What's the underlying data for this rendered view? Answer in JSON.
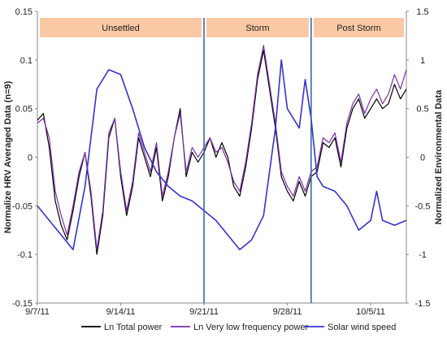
{
  "chart_data": {
    "type": "line",
    "ylabel_left": "Normalize HRV Averaged Data (n=9)",
    "ylabel_right": "Normalized Environmental Data",
    "ylim_left": [
      -0.15,
      0.15
    ],
    "ylim_right": [
      -1.5,
      1.5
    ],
    "yticks_left": [
      "0.15",
      "0.1",
      "0.05",
      "0",
      "-0.05",
      "-0.1",
      "-0.15"
    ],
    "yticks_right": [
      "1.5",
      "1",
      "0.5",
      "0",
      "-0.5",
      "-1",
      "-1.5"
    ],
    "xlim": [
      "2011-09-07",
      "2011-10-08"
    ],
    "xticks": [
      {
        "date": "2011-09-07",
        "label": "9/7/11"
      },
      {
        "date": "2011-09-14",
        "label": "9/14/11"
      },
      {
        "date": "2011-09-21",
        "label": "9/21/11"
      },
      {
        "date": "2011-09-28",
        "label": "9/28/11"
      },
      {
        "date": "2011-10-05",
        "label": "10/5/11"
      }
    ],
    "period_dividers": [
      "2011-09-21",
      "2011-09-30"
    ],
    "periods": [
      {
        "label": "Unsettled",
        "start": "2011-09-07",
        "end": "2011-09-21"
      },
      {
        "label": "Storm",
        "start": "2011-09-21",
        "end": "2011-09-30"
      },
      {
        "label": "Post Storm",
        "start": "2011-09-30",
        "end": "2011-10-08"
      }
    ],
    "series": [
      {
        "name": "Ln Total power",
        "axis": "left",
        "color": "#000000",
        "points": [
          [
            "2011-09-07",
            0.038
          ],
          [
            "2011-09-07",
            0.045
          ],
          [
            "2011-09-08",
            0.01
          ],
          [
            "2011-09-08",
            -0.045
          ],
          [
            "2011-09-09",
            -0.07
          ],
          [
            "2011-09-09",
            -0.085
          ],
          [
            "2011-09-10",
            -0.055
          ],
          [
            "2011-09-10",
            -0.02
          ],
          [
            "2011-09-11",
            0.005
          ],
          [
            "2011-09-11",
            -0.04
          ],
          [
            "2011-09-12",
            -0.1
          ],
          [
            "2011-09-12",
            -0.06
          ],
          [
            "2011-09-13",
            0.02
          ],
          [
            "2011-09-13",
            0.04
          ],
          [
            "2011-09-14",
            -0.02
          ],
          [
            "2011-09-14",
            -0.06
          ],
          [
            "2011-09-15",
            -0.03
          ],
          [
            "2011-09-15",
            0.02
          ],
          [
            "2011-09-16",
            0.0
          ],
          [
            "2011-09-16",
            -0.02
          ],
          [
            "2011-09-17",
            0.01
          ],
          [
            "2011-09-17",
            -0.045
          ],
          [
            "2011-09-18",
            -0.02
          ],
          [
            "2011-09-18",
            0.02
          ],
          [
            "2011-09-19",
            0.05
          ],
          [
            "2011-09-19",
            -0.02
          ],
          [
            "2011-09-20",
            0.005
          ],
          [
            "2011-09-20",
            -0.005
          ],
          [
            "2011-09-21",
            0.005
          ],
          [
            "2011-09-21",
            0.02
          ],
          [
            "2011-09-22",
            0.0
          ],
          [
            "2011-09-22",
            0.015
          ],
          [
            "2011-09-23",
            0.0
          ],
          [
            "2011-09-23",
            -0.03
          ],
          [
            "2011-09-24",
            -0.04
          ],
          [
            "2011-09-24",
            -0.01
          ],
          [
            "2011-09-25",
            0.03
          ],
          [
            "2011-09-25",
            0.08
          ],
          [
            "2011-09-26",
            0.11
          ],
          [
            "2011-09-26",
            0.07
          ],
          [
            "2011-09-27",
            0.03
          ],
          [
            "2011-09-27",
            -0.02
          ],
          [
            "2011-09-28",
            -0.035
          ],
          [
            "2011-09-28",
            -0.045
          ],
          [
            "2011-09-29",
            -0.025
          ],
          [
            "2011-09-29",
            -0.04
          ],
          [
            "2011-09-30",
            -0.02
          ],
          [
            "2011-09-30",
            -0.015
          ],
          [
            "2011-10-01",
            0.015
          ],
          [
            "2011-10-01",
            0.01
          ],
          [
            "2011-10-02",
            0.02
          ],
          [
            "2011-10-02",
            -0.01
          ],
          [
            "2011-10-03",
            0.03
          ],
          [
            "2011-10-03",
            0.05
          ],
          [
            "2011-10-04",
            0.06
          ],
          [
            "2011-10-04",
            0.04
          ],
          [
            "2011-10-05",
            0.05
          ],
          [
            "2011-10-05",
            0.06
          ],
          [
            "2011-10-06",
            0.05
          ],
          [
            "2011-10-06",
            0.055
          ],
          [
            "2011-10-07",
            0.075
          ],
          [
            "2011-10-07",
            0.06
          ],
          [
            "2011-10-08",
            0.07
          ]
        ]
      },
      {
        "name": "Ln Very low frequency power",
        "axis": "left",
        "color": "#7b2fa8",
        "points": [
          [
            "2011-09-07",
            0.035
          ],
          [
            "2011-09-07",
            0.04
          ],
          [
            "2011-09-08",
            0.02
          ],
          [
            "2011-09-08",
            -0.035
          ],
          [
            "2011-09-09",
            -0.06
          ],
          [
            "2011-09-09",
            -0.08
          ],
          [
            "2011-09-10",
            -0.05
          ],
          [
            "2011-09-10",
            -0.015
          ],
          [
            "2011-09-11",
            0.005
          ],
          [
            "2011-09-11",
            -0.035
          ],
          [
            "2011-09-12",
            -0.095
          ],
          [
            "2011-09-12",
            -0.055
          ],
          [
            "2011-09-13",
            0.025
          ],
          [
            "2011-09-13",
            0.04
          ],
          [
            "2011-09-14",
            -0.015
          ],
          [
            "2011-09-14",
            -0.055
          ],
          [
            "2011-09-15",
            -0.025
          ],
          [
            "2011-09-15",
            0.025
          ],
          [
            "2011-09-16",
            0.005
          ],
          [
            "2011-09-16",
            -0.015
          ],
          [
            "2011-09-17",
            0.015
          ],
          [
            "2011-09-17",
            -0.04
          ],
          [
            "2011-09-18",
            -0.015
          ],
          [
            "2011-09-18",
            0.02
          ],
          [
            "2011-09-19",
            0.045
          ],
          [
            "2011-09-19",
            -0.015
          ],
          [
            "2011-09-20",
            0.01
          ],
          [
            "2011-09-20",
            0.0
          ],
          [
            "2011-09-21",
            0.01
          ],
          [
            "2011-09-21",
            0.02
          ],
          [
            "2011-09-22",
            0.005
          ],
          [
            "2011-09-22",
            0.01
          ],
          [
            "2011-09-23",
            -0.005
          ],
          [
            "2011-09-23",
            -0.025
          ],
          [
            "2011-09-24",
            -0.035
          ],
          [
            "2011-09-24",
            -0.005
          ],
          [
            "2011-09-25",
            0.035
          ],
          [
            "2011-09-25",
            0.085
          ],
          [
            "2011-09-26",
            0.115
          ],
          [
            "2011-09-26",
            0.075
          ],
          [
            "2011-09-27",
            0.035
          ],
          [
            "2011-09-27",
            -0.015
          ],
          [
            "2011-09-28",
            -0.03
          ],
          [
            "2011-09-28",
            -0.04
          ],
          [
            "2011-09-29",
            -0.02
          ],
          [
            "2011-09-29",
            -0.035
          ],
          [
            "2011-09-30",
            -0.015
          ],
          [
            "2011-09-30",
            -0.01
          ],
          [
            "2011-10-01",
            0.02
          ],
          [
            "2011-10-01",
            0.015
          ],
          [
            "2011-10-02",
            0.025
          ],
          [
            "2011-10-02",
            -0.005
          ],
          [
            "2011-10-03",
            0.035
          ],
          [
            "2011-10-03",
            0.055
          ],
          [
            "2011-10-04",
            0.065
          ],
          [
            "2011-10-04",
            0.045
          ],
          [
            "2011-10-05",
            0.06
          ],
          [
            "2011-10-05",
            0.07
          ],
          [
            "2011-10-06",
            0.055
          ],
          [
            "2011-10-06",
            0.065
          ],
          [
            "2011-10-07",
            0.085
          ],
          [
            "2011-10-07",
            0.07
          ],
          [
            "2011-10-08",
            0.09
          ]
        ]
      },
      {
        "name": "Solar wind speed",
        "axis": "right",
        "color": "#3333cc",
        "points": [
          [
            "2011-09-07",
            -0.5
          ],
          [
            "2011-09-08",
            -0.65
          ],
          [
            "2011-09-09",
            -0.8
          ],
          [
            "2011-09-10",
            -0.95
          ],
          [
            "2011-09-11",
            -0.3
          ],
          [
            "2011-09-12",
            0.7
          ],
          [
            "2011-09-13",
            0.9
          ],
          [
            "2011-09-14",
            0.85
          ],
          [
            "2011-09-15",
            0.5
          ],
          [
            "2011-09-16",
            0.1
          ],
          [
            "2011-09-17",
            -0.15
          ],
          [
            "2011-09-18",
            -0.3
          ],
          [
            "2011-09-19",
            -0.4
          ],
          [
            "2011-09-20",
            -0.45
          ],
          [
            "2011-09-21",
            -0.55
          ],
          [
            "2011-09-22",
            -0.65
          ],
          [
            "2011-09-23",
            -0.8
          ],
          [
            "2011-09-24",
            -0.95
          ],
          [
            "2011-09-25",
            -0.85
          ],
          [
            "2011-09-26",
            -0.6
          ],
          [
            "2011-09-27",
            0.3
          ],
          [
            "2011-09-27",
            1.0
          ],
          [
            "2011-09-28",
            0.5
          ],
          [
            "2011-09-29",
            0.3
          ],
          [
            "2011-09-29",
            0.8
          ],
          [
            "2011-09-30",
            0.4
          ],
          [
            "2011-09-30",
            -0.2
          ],
          [
            "2011-10-01",
            -0.3
          ],
          [
            "2011-10-02",
            -0.35
          ],
          [
            "2011-10-03",
            -0.5
          ],
          [
            "2011-10-04",
            -0.75
          ],
          [
            "2011-10-05",
            -0.65
          ],
          [
            "2011-10-05",
            -0.35
          ],
          [
            "2011-10-06",
            -0.65
          ],
          [
            "2011-10-07",
            -0.7
          ],
          [
            "2011-10-08",
            -0.65
          ]
        ]
      }
    ],
    "legend": {
      "position": "bottom"
    },
    "grid": false
  }
}
